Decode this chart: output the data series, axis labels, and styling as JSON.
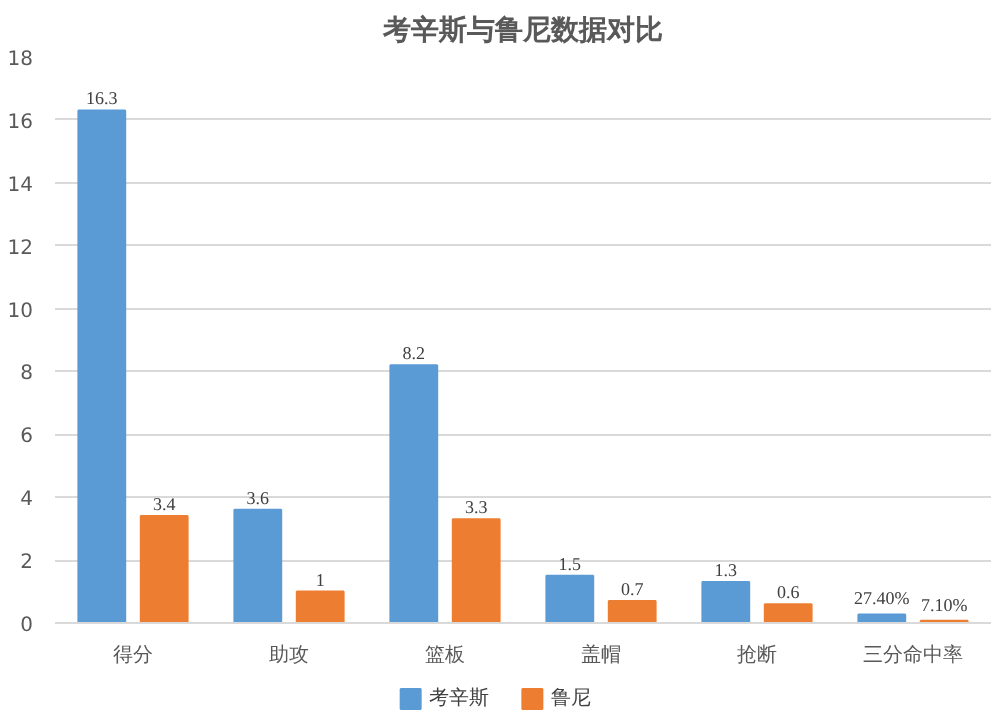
{
  "chart_data": {
    "type": "bar",
    "title": "考辛斯与鲁尼数据对比",
    "categories": [
      "得分",
      "助攻",
      "篮板",
      "盖帽",
      "抢断",
      "三分命中率"
    ],
    "series": [
      {
        "name": "考辛斯",
        "color": "#5b9bd5",
        "values": [
          16.3,
          3.6,
          8.2,
          1.5,
          1.3,
          0.274
        ],
        "value_labels": [
          "16.3",
          "3.6",
          "8.2",
          "1.5",
          "1.3",
          "27.40%"
        ]
      },
      {
        "name": "鲁尼",
        "color": "#ed7d31",
        "values": [
          3.4,
          1,
          3.3,
          0.7,
          0.6,
          0.071
        ],
        "value_labels": [
          "3.4",
          "1",
          "3.3",
          "0.7",
          "0.6",
          "7.10%"
        ]
      }
    ],
    "ylim": [
      0,
      18
    ],
    "yticks": [
      0,
      2,
      4,
      6,
      8,
      10,
      12,
      14,
      16,
      18
    ],
    "grid": "y",
    "legend": "bottom"
  }
}
